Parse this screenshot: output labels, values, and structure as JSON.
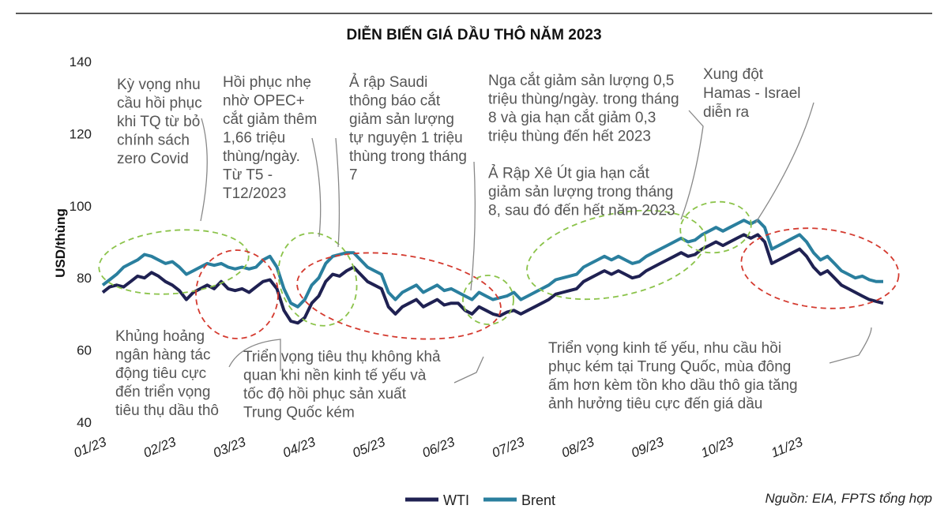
{
  "chart_data": {
    "type": "line",
    "title": "DIỄN BIẾN GIÁ DẦU THÔ NĂM 2023",
    "ylabel": "USD/thùng",
    "xlabel": "",
    "ylim": [
      40,
      140
    ],
    "y_ticks": [
      "140",
      "120",
      "100",
      "80",
      "60",
      "40"
    ],
    "x_ticks": [
      "01/23",
      "02/23",
      "03/23",
      "04/23",
      "05/23",
      "06/23",
      "07/23",
      "08/23",
      "09/23",
      "10/23",
      "11/23"
    ],
    "x_month_range": [
      0,
      11.2
    ],
    "series": [
      {
        "name": "WTI",
        "color": "#1f2152",
        "points": [
          [
            0,
            76
          ],
          [
            0.1,
            77.5
          ],
          [
            0.2,
            78
          ],
          [
            0.3,
            77.5
          ],
          [
            0.4,
            79
          ],
          [
            0.5,
            80.5
          ],
          [
            0.6,
            80
          ],
          [
            0.7,
            81.5
          ],
          [
            0.8,
            80.5
          ],
          [
            0.9,
            79
          ],
          [
            1.0,
            78
          ],
          [
            1.1,
            76.5
          ],
          [
            1.2,
            74
          ],
          [
            1.3,
            76
          ],
          [
            1.4,
            77
          ],
          [
            1.5,
            78
          ],
          [
            1.6,
            77
          ],
          [
            1.7,
            79
          ],
          [
            1.8,
            77
          ],
          [
            1.9,
            76.5
          ],
          [
            2.0,
            77
          ],
          [
            2.1,
            76
          ],
          [
            2.2,
            77.5
          ],
          [
            2.3,
            79
          ],
          [
            2.4,
            79.5
          ],
          [
            2.5,
            77
          ],
          [
            2.6,
            71
          ],
          [
            2.7,
            68
          ],
          [
            2.8,
            67.5
          ],
          [
            2.9,
            69
          ],
          [
            3.0,
            73
          ],
          [
            3.1,
            75
          ],
          [
            3.2,
            79
          ],
          [
            3.3,
            81
          ],
          [
            3.4,
            80.5
          ],
          [
            3.5,
            82
          ],
          [
            3.6,
            83
          ],
          [
            3.7,
            81
          ],
          [
            3.8,
            79
          ],
          [
            3.9,
            78
          ],
          [
            4.0,
            77
          ],
          [
            4.1,
            72
          ],
          [
            4.2,
            70
          ],
          [
            4.3,
            72
          ],
          [
            4.4,
            73
          ],
          [
            4.5,
            74
          ],
          [
            4.6,
            72
          ],
          [
            4.7,
            73
          ],
          [
            4.8,
            74
          ],
          [
            4.9,
            72.5
          ],
          [
            5.0,
            73
          ],
          [
            5.1,
            73
          ],
          [
            5.2,
            71
          ],
          [
            5.3,
            70
          ],
          [
            5.4,
            72
          ],
          [
            5.5,
            71
          ],
          [
            5.6,
            70
          ],
          [
            5.7,
            69.5
          ],
          [
            5.8,
            70.5
          ],
          [
            5.9,
            71
          ],
          [
            6.0,
            70
          ],
          [
            6.1,
            71
          ],
          [
            6.2,
            72
          ],
          [
            6.3,
            73
          ],
          [
            6.4,
            74
          ],
          [
            6.5,
            75.5
          ],
          [
            6.6,
            76
          ],
          [
            6.7,
            76.5
          ],
          [
            6.8,
            77
          ],
          [
            6.9,
            79
          ],
          [
            7.0,
            80
          ],
          [
            7.1,
            81
          ],
          [
            7.2,
            82
          ],
          [
            7.3,
            81
          ],
          [
            7.4,
            82
          ],
          [
            7.5,
            81
          ],
          [
            7.6,
            80
          ],
          [
            7.7,
            80.5
          ],
          [
            7.8,
            82
          ],
          [
            7.9,
            83
          ],
          [
            8.0,
            84
          ],
          [
            8.1,
            85
          ],
          [
            8.2,
            86
          ],
          [
            8.3,
            87
          ],
          [
            8.4,
            86
          ],
          [
            8.5,
            86.5
          ],
          [
            8.6,
            88
          ],
          [
            8.7,
            89
          ],
          [
            8.8,
            90
          ],
          [
            8.9,
            89
          ],
          [
            9.0,
            90
          ],
          [
            9.1,
            91
          ],
          [
            9.2,
            92
          ],
          [
            9.3,
            91
          ],
          [
            9.4,
            92
          ],
          [
            9.5,
            90
          ],
          [
            9.6,
            84
          ],
          [
            9.7,
            85
          ],
          [
            9.8,
            86
          ],
          [
            9.9,
            87
          ],
          [
            10.0,
            88
          ],
          [
            10.1,
            86
          ],
          [
            10.2,
            83
          ],
          [
            10.3,
            81
          ],
          [
            10.4,
            82
          ],
          [
            10.5,
            80
          ],
          [
            10.6,
            78
          ],
          [
            10.7,
            77
          ],
          [
            10.8,
            76
          ],
          [
            10.9,
            75
          ],
          [
            11.0,
            74
          ],
          [
            11.1,
            73.5
          ],
          [
            11.2,
            73
          ]
        ]
      },
      {
        "name": "Brent",
        "color": "#2a7f9e",
        "points": [
          [
            0,
            78
          ],
          [
            0.1,
            79.5
          ],
          [
            0.2,
            81
          ],
          [
            0.3,
            83
          ],
          [
            0.4,
            84
          ],
          [
            0.5,
            85
          ],
          [
            0.6,
            86.5
          ],
          [
            0.7,
            86
          ],
          [
            0.8,
            85
          ],
          [
            0.9,
            84
          ],
          [
            1.0,
            84.5
          ],
          [
            1.1,
            83
          ],
          [
            1.2,
            81
          ],
          [
            1.3,
            82
          ],
          [
            1.4,
            83
          ],
          [
            1.5,
            84
          ],
          [
            1.6,
            83.5
          ],
          [
            1.7,
            84
          ],
          [
            1.8,
            83
          ],
          [
            1.9,
            82.5
          ],
          [
            2.0,
            83
          ],
          [
            2.1,
            82.5
          ],
          [
            2.2,
            83
          ],
          [
            2.3,
            85
          ],
          [
            2.4,
            86
          ],
          [
            2.5,
            83
          ],
          [
            2.6,
            77
          ],
          [
            2.7,
            73
          ],
          [
            2.8,
            72
          ],
          [
            2.9,
            74
          ],
          [
            3.0,
            78
          ],
          [
            3.1,
            80
          ],
          [
            3.2,
            84
          ],
          [
            3.3,
            86
          ],
          [
            3.4,
            86.5
          ],
          [
            3.5,
            87
          ],
          [
            3.6,
            87
          ],
          [
            3.7,
            85
          ],
          [
            3.8,
            83
          ],
          [
            3.9,
            82
          ],
          [
            4.0,
            81
          ],
          [
            4.1,
            76
          ],
          [
            4.2,
            74
          ],
          [
            4.3,
            76
          ],
          [
            4.4,
            77
          ],
          [
            4.5,
            78
          ],
          [
            4.6,
            76
          ],
          [
            4.7,
            77
          ],
          [
            4.8,
            78
          ],
          [
            4.9,
            76.5
          ],
          [
            5.0,
            77
          ],
          [
            5.1,
            76
          ],
          [
            5.2,
            75
          ],
          [
            5.3,
            74
          ],
          [
            5.4,
            76
          ],
          [
            5.5,
            75
          ],
          [
            5.6,
            74
          ],
          [
            5.7,
            74.5
          ],
          [
            5.8,
            75
          ],
          [
            5.9,
            76
          ],
          [
            6.0,
            74
          ],
          [
            6.1,
            75
          ],
          [
            6.2,
            76
          ],
          [
            6.3,
            77
          ],
          [
            6.4,
            78
          ],
          [
            6.5,
            79.5
          ],
          [
            6.6,
            80
          ],
          [
            6.7,
            80.5
          ],
          [
            6.8,
            81
          ],
          [
            6.9,
            83
          ],
          [
            7.0,
            84
          ],
          [
            7.1,
            85
          ],
          [
            7.2,
            86
          ],
          [
            7.3,
            85
          ],
          [
            7.4,
            86
          ],
          [
            7.5,
            85
          ],
          [
            7.6,
            84
          ],
          [
            7.7,
            84.5
          ],
          [
            7.8,
            86
          ],
          [
            7.9,
            87
          ],
          [
            8.0,
            88
          ],
          [
            8.1,
            89
          ],
          [
            8.2,
            90
          ],
          [
            8.3,
            91
          ],
          [
            8.4,
            90
          ],
          [
            8.5,
            90.5
          ],
          [
            8.6,
            92
          ],
          [
            8.7,
            93
          ],
          [
            8.8,
            94
          ],
          [
            8.9,
            93
          ],
          [
            9.0,
            94
          ],
          [
            9.1,
            95
          ],
          [
            9.2,
            96
          ],
          [
            9.3,
            95
          ],
          [
            9.4,
            96
          ],
          [
            9.5,
            94
          ],
          [
            9.6,
            88
          ],
          [
            9.7,
            89
          ],
          [
            9.8,
            90
          ],
          [
            9.9,
            91
          ],
          [
            10.0,
            92
          ],
          [
            10.1,
            90
          ],
          [
            10.2,
            87
          ],
          [
            10.3,
            85
          ],
          [
            10.4,
            86
          ],
          [
            10.5,
            84
          ],
          [
            10.6,
            82
          ],
          [
            10.7,
            81
          ],
          [
            10.8,
            80
          ],
          [
            10.9,
            80.5
          ],
          [
            11.0,
            79.5
          ],
          [
            11.1,
            79
          ],
          [
            11.2,
            79
          ]
        ]
      }
    ],
    "legend": [
      "WTI",
      "Brent"
    ],
    "legend_position": "bottom-center",
    "annotations": [
      {
        "lines": [
          "Kỳ vọng nhu",
          "cầu hồi phục",
          "khi TQ từ bỏ",
          "chính sách",
          "zero Covid"
        ]
      },
      {
        "lines": [
          "Hồi phục nhẹ",
          "nhờ OPEC+",
          "cắt giảm thêm",
          "1,66 triệu",
          "thùng/ngày.",
          "Từ T5 -",
          "T12/2023"
        ]
      },
      {
        "lines": [
          "Ả rập Saudi",
          "thông báo cắt",
          "giảm sản lượng",
          "tự nguyện 1 triệu",
          "thùng trong tháng",
          "7"
        ]
      },
      {
        "lines": [
          "Nga cắt giảm sản lượng 0,5",
          "triệu thùng/ngày. trong tháng",
          "8 và gia hạn cắt giảm 0,3",
          "triệu thùng đến hết 2023",
          "",
          "Ả Rập Xê Út gia hạn cắt",
          "giảm sản lượng trong tháng",
          "8, sau đó đến hết năm 2023"
        ]
      },
      {
        "lines": [
          "Xung đột",
          "Hamas - Israel",
          "diễn ra"
        ]
      },
      {
        "lines": [
          "Khủng hoảng",
          "ngân hàng tác",
          "động tiêu cực",
          "đến triển vọng",
          "tiêu thụ dầu thô"
        ]
      },
      {
        "lines": [
          "Triển vọng tiêu thụ không khả",
          "quan khi nền kinh tế yếu và",
          "tốc độ hồi phục sản xuất",
          "Trung Quốc kém"
        ]
      },
      {
        "lines": [
          "Triển vọng kinh tế yếu, nhu cầu hồi",
          "phục kém tại Trung Quốc, mùa đông",
          "ấm hơn kèm tồn kho dầu thô gia tăng",
          "ảnh hưởng tiêu cực đến giá dầu"
        ]
      }
    ],
    "source": "Nguồn: EIA, FPTS tổng hợp"
  }
}
